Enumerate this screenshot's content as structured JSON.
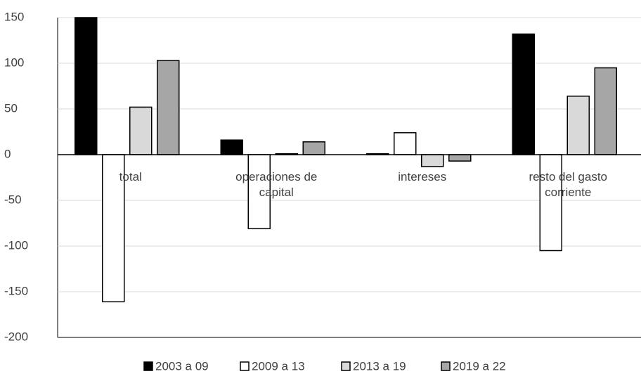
{
  "chart_data": {
    "type": "bar",
    "categories": [
      "total",
      "operaciones de capital",
      "intereses",
      "resto del gasto corriente"
    ],
    "series": [
      {
        "name": "2003 a 09",
        "color": "#000000",
        "values": [
          150,
          16,
          1,
          132
        ]
      },
      {
        "name": "2009 a 13",
        "color": "#ffffff",
        "values": [
          -161,
          -81,
          24,
          -105
        ]
      },
      {
        "name": "2013 a 19",
        "color": "#d9d9d9",
        "values": [
          52,
          1,
          -13,
          64
        ]
      },
      {
        "name": "2019 a 22",
        "color": "#a6a6a6",
        "values": [
          103,
          14,
          -7,
          95
        ]
      }
    ],
    "ylim": [
      -200,
      150
    ],
    "yticks": [
      -200,
      -150,
      -100,
      -50,
      0,
      50,
      100,
      150
    ],
    "grid": true,
    "legend": "bottom"
  }
}
